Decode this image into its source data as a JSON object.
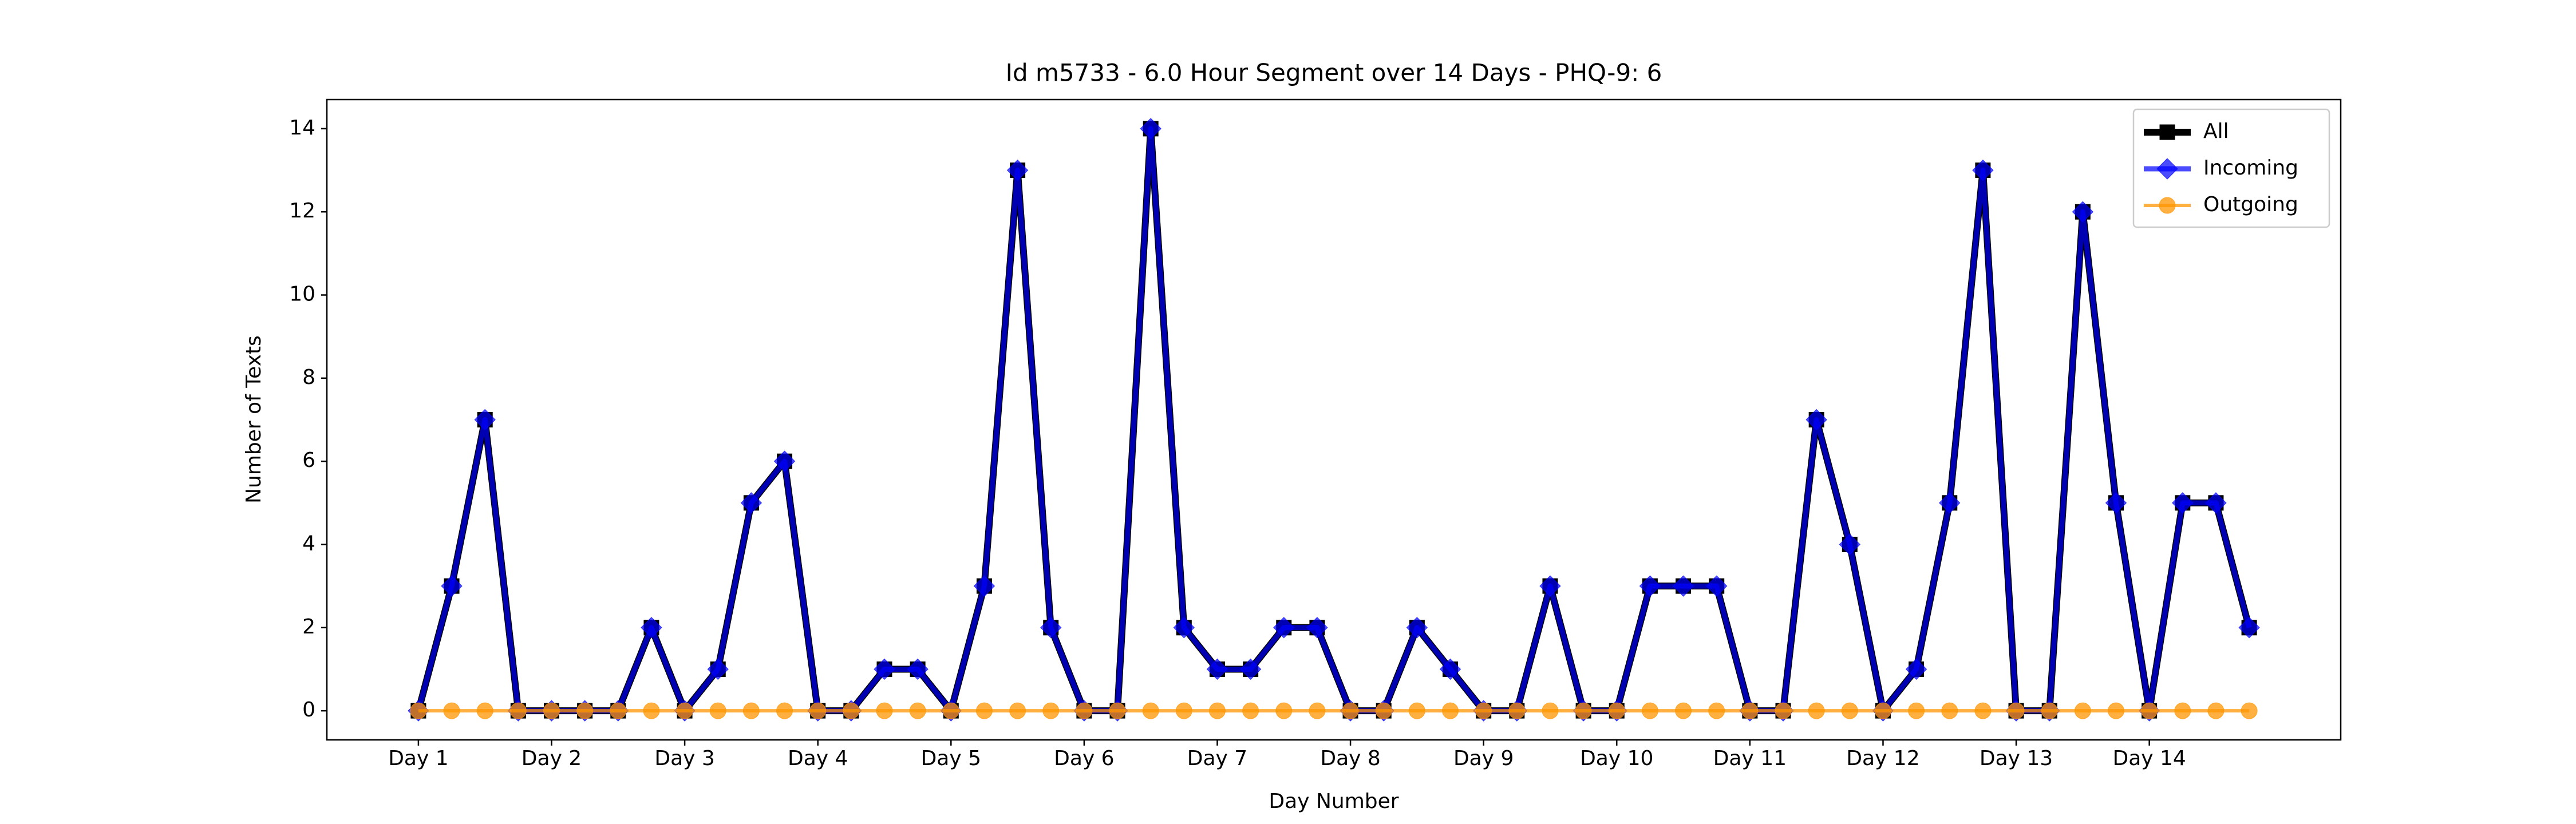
{
  "chart_data": {
    "type": "line",
    "title": "Id m5733 - 6.0 Hour Segment over 14 Days - PHQ-9: 6",
    "x_label": "Day Number",
    "y_label": "Number of Texts",
    "categories": [
      "Day 1",
      null,
      null,
      null,
      "Day 2",
      null,
      null,
      null,
      "Day 3",
      null,
      null,
      null,
      "Day 4",
      null,
      null,
      null,
      "Day 5",
      null,
      null,
      null,
      "Day 6",
      null,
      null,
      null,
      "Day 7",
      null,
      null,
      null,
      "Day 8",
      null,
      null,
      null,
      "Day 9",
      null,
      null,
      null,
      "Day 10",
      null,
      null,
      null,
      "Day 11",
      null,
      null,
      null,
      "Day 12",
      null,
      null,
      null,
      "Day 13",
      null,
      null,
      null,
      "Day 14",
      null,
      null,
      null
    ],
    "series": [
      {
        "name": "All",
        "color": "#000000",
        "opacity": 1,
        "marker": "square",
        "values": [
          0,
          3,
          7,
          0,
          0,
          0,
          0,
          2,
          0,
          1,
          5,
          6,
          0,
          0,
          1,
          1,
          0,
          3,
          13,
          2,
          0,
          0,
          14,
          2,
          1,
          1,
          2,
          2,
          0,
          0,
          2,
          1,
          0,
          0,
          3,
          0,
          0,
          3,
          3,
          3,
          0,
          0,
          7,
          4,
          0,
          1,
          5,
          13,
          0,
          0,
          12,
          5,
          0,
          5,
          5,
          2
        ]
      },
      {
        "name": "Incoming",
        "color": "#0000ff",
        "opacity": 0.7,
        "marker": "diamond",
        "values": [
          0,
          3,
          7,
          0,
          0,
          0,
          0,
          2,
          0,
          1,
          5,
          6,
          0,
          0,
          1,
          1,
          0,
          3,
          13,
          2,
          0,
          0,
          14,
          2,
          1,
          1,
          2,
          2,
          0,
          0,
          2,
          1,
          0,
          0,
          3,
          0,
          0,
          3,
          3,
          3,
          0,
          0,
          7,
          4,
          0,
          1,
          5,
          13,
          0,
          0,
          12,
          5,
          0,
          5,
          5,
          2
        ]
      },
      {
        "name": "Outgoing",
        "color": "#ff9500",
        "opacity": 0.75,
        "marker": "circle",
        "values": [
          0,
          0,
          0,
          0,
          0,
          0,
          0,
          0,
          0,
          0,
          0,
          0,
          0,
          0,
          0,
          0,
          0,
          0,
          0,
          0,
          0,
          0,
          0,
          0,
          0,
          0,
          0,
          0,
          0,
          0,
          0,
          0,
          0,
          0,
          0,
          0,
          0,
          0,
          0,
          0,
          0,
          0,
          0,
          0,
          0,
          0,
          0,
          0,
          0,
          0,
          0,
          0,
          0,
          0,
          0,
          0
        ]
      }
    ],
    "xlim": [
      -2.75,
      57.75
    ],
    "ylim": [
      -0.7,
      14.7
    ],
    "yticks": [
      0,
      2,
      4,
      6,
      8,
      10,
      12,
      14
    ],
    "grid": false,
    "legend": "upper right"
  }
}
